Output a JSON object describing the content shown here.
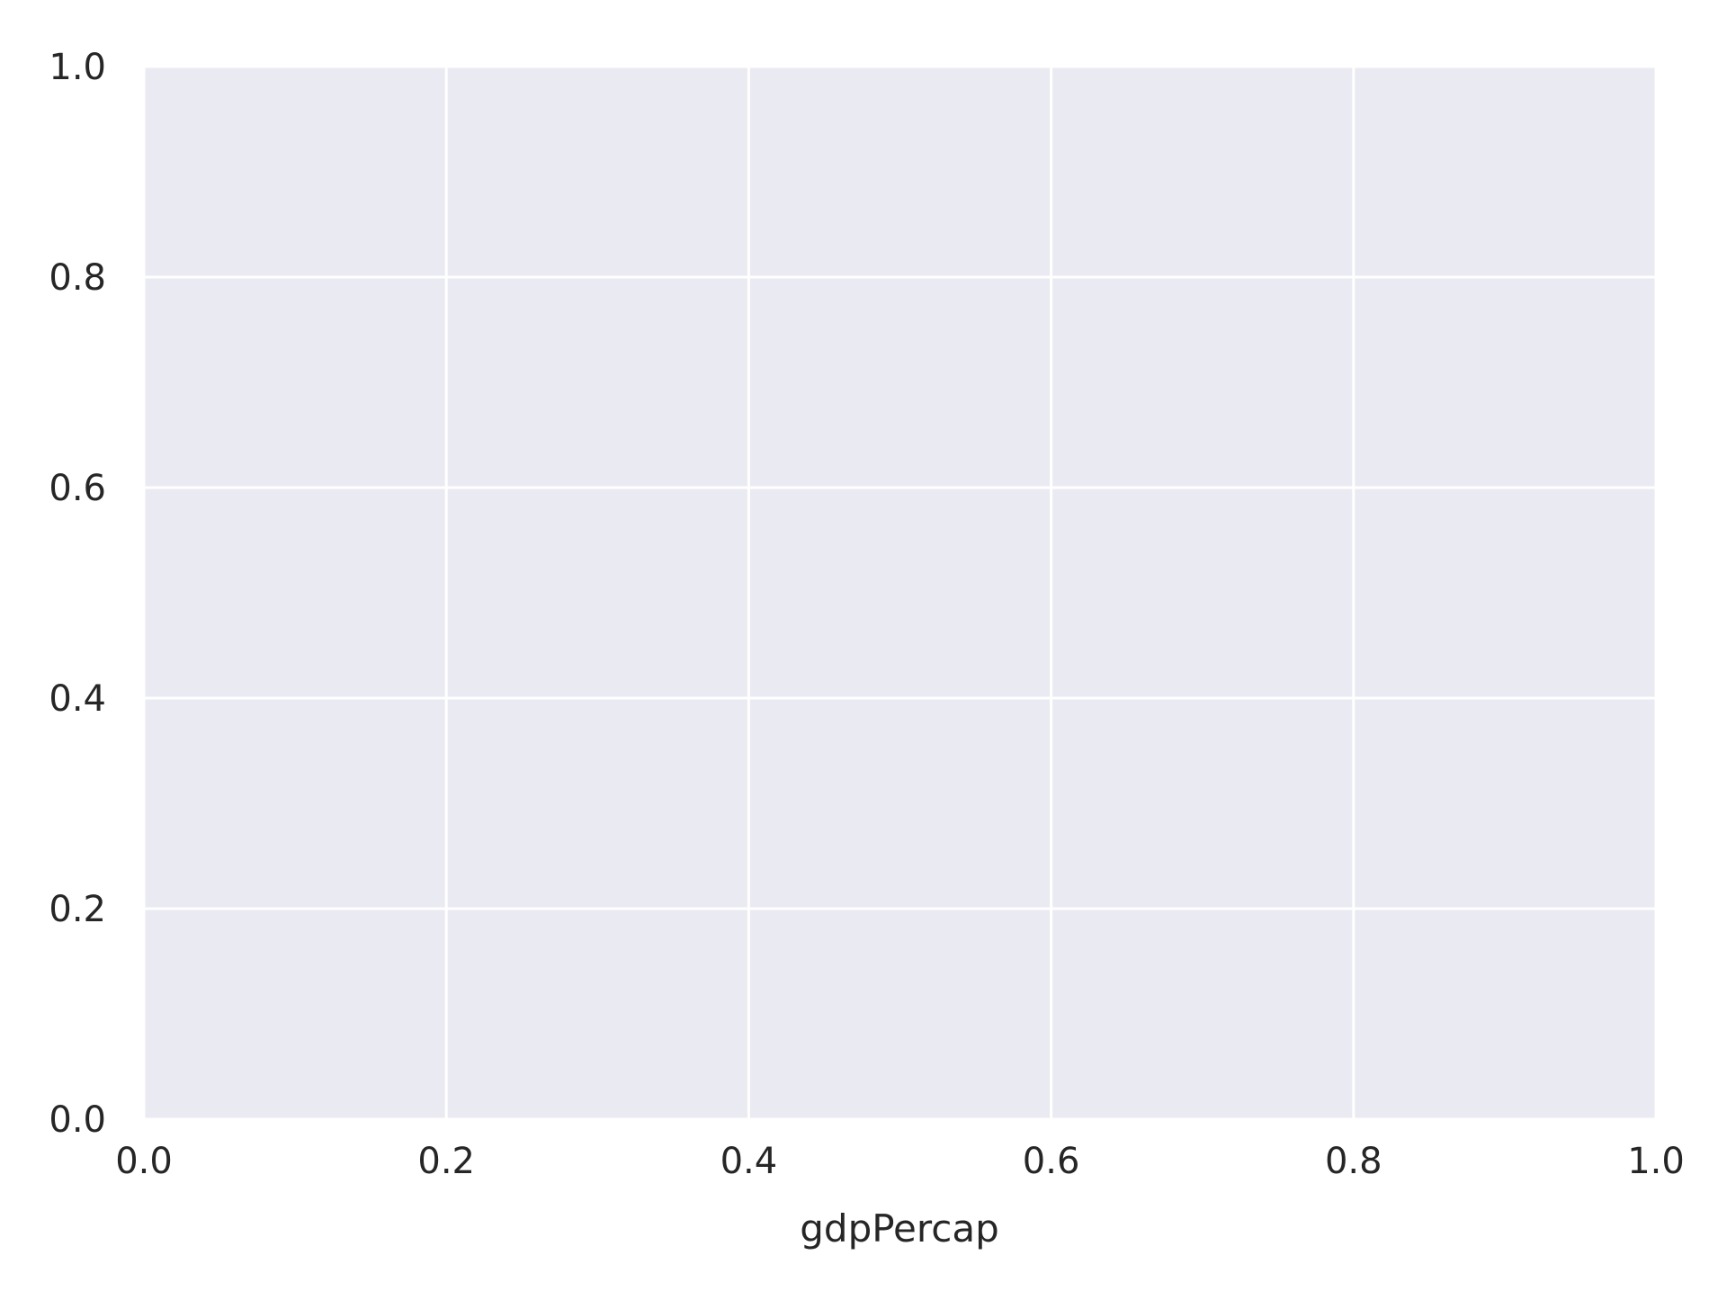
{
  "chart_data": {
    "type": "scatter",
    "title": "",
    "xlabel": "gdpPercap",
    "ylabel": "",
    "xlim": [
      0.0,
      1.0
    ],
    "ylim": [
      0.0,
      1.0
    ],
    "x_ticks": [
      "0.0",
      "0.2",
      "0.4",
      "0.6",
      "0.8",
      "1.0"
    ],
    "y_ticks": [
      "0.0",
      "0.2",
      "0.4",
      "0.6",
      "0.8",
      "1.0"
    ],
    "grid": true,
    "legend": "none",
    "series": [],
    "colors": {
      "background": "#ffffff",
      "plot_area": "#eaeaf2",
      "grid": "#ffffff",
      "text": "#262626"
    }
  }
}
